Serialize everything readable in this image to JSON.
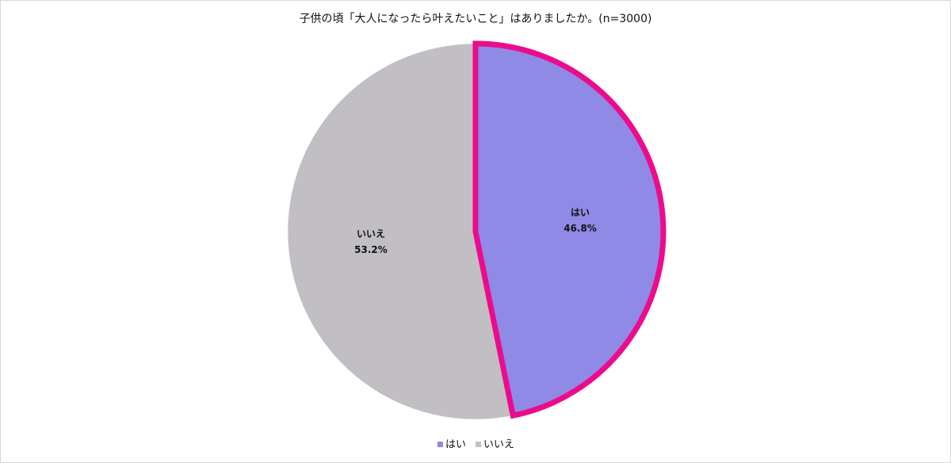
{
  "chart_data": {
    "type": "pie",
    "title": "子供の頃「大人になったら叶えたいこと」はありましたか。(n=3000)",
    "categories": [
      "はい",
      "いいえ"
    ],
    "values": [
      46.8,
      53.2
    ],
    "value_labels": [
      "46.8%",
      "53.2%"
    ],
    "colors": [
      "#8f8ae6",
      "#c1bfc3"
    ]
  }
}
